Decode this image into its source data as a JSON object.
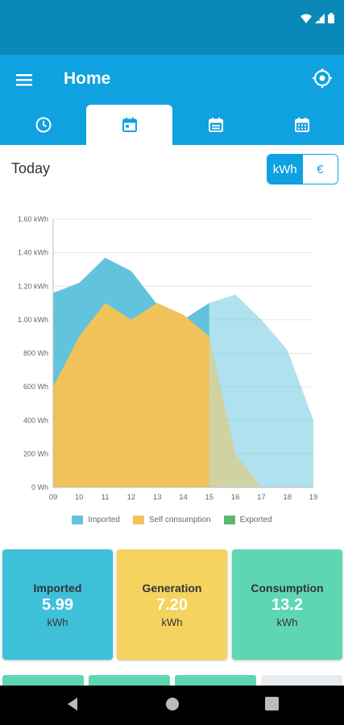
{
  "header": {
    "title": "Home"
  },
  "tabs": [
    {
      "name": "history",
      "icon": "clock-icon",
      "active": false
    },
    {
      "name": "day",
      "icon": "calendar-day-icon",
      "active": true
    },
    {
      "name": "week",
      "icon": "calendar-week-icon",
      "active": false
    },
    {
      "name": "month",
      "icon": "calendar-month-icon",
      "active": false
    }
  ],
  "period": {
    "label": "Today"
  },
  "unit_toggle": {
    "kwh": "kWh",
    "euro": "€",
    "selected": "kWh"
  },
  "colors": {
    "statusbar": "#0a89b9",
    "primary": "#0fa1e0",
    "imported": "#62c3dd",
    "self_consumption": "#f0c35a",
    "exported": "#5cb870"
  },
  "chart_data": {
    "type": "area",
    "x": [
      "09",
      "10",
      "11",
      "12",
      "13",
      "14",
      "15",
      "16",
      "17",
      "18",
      "19"
    ],
    "y_ticks": [
      "0 Wh",
      "200 Wh",
      "400 Wh",
      "600 Wh",
      "800 Wh",
      "1.00 kWh",
      "1.20 kWh",
      "1.40 kWh",
      "1.60 kWh"
    ],
    "ylim": [
      0,
      1.6
    ],
    "y_unit": "kWh",
    "series": [
      {
        "name": "Imported",
        "color": "#62c3dd",
        "values": [
          1.16,
          1.22,
          1.37,
          1.29,
          1.09,
          1.0,
          1.1,
          1.15,
          1.0,
          0.82,
          0.4
        ]
      },
      {
        "name": "Self consumption",
        "color": "#f0c35a",
        "values": [
          0.6,
          0.9,
          1.1,
          1.0,
          1.1,
          1.03,
          0.9,
          0.2,
          0,
          0,
          0
        ]
      },
      {
        "name": "Exported",
        "color": "#5cb870",
        "values": [
          0,
          0,
          0,
          0,
          0,
          0,
          0,
          0,
          0,
          0,
          0
        ]
      }
    ],
    "future_from_index": 6,
    "grid": true,
    "legend": "bottom"
  },
  "legend": [
    {
      "label": "Imported",
      "color": "#62c3dd"
    },
    {
      "label": "Self consumption",
      "color": "#f0c35a"
    },
    {
      "label": "Exported",
      "color": "#5cb870"
    }
  ],
  "cards": [
    {
      "label": "Imported",
      "value": "5.99",
      "unit": "kWh",
      "color": "#3fc0d9"
    },
    {
      "label": "Generation",
      "value": "7.20",
      "unit": "kWh",
      "color": "#f4d35e"
    },
    {
      "label": "Consumption",
      "value": "13.2",
      "unit": "kWh",
      "color": "#5fd6b3"
    }
  ]
}
